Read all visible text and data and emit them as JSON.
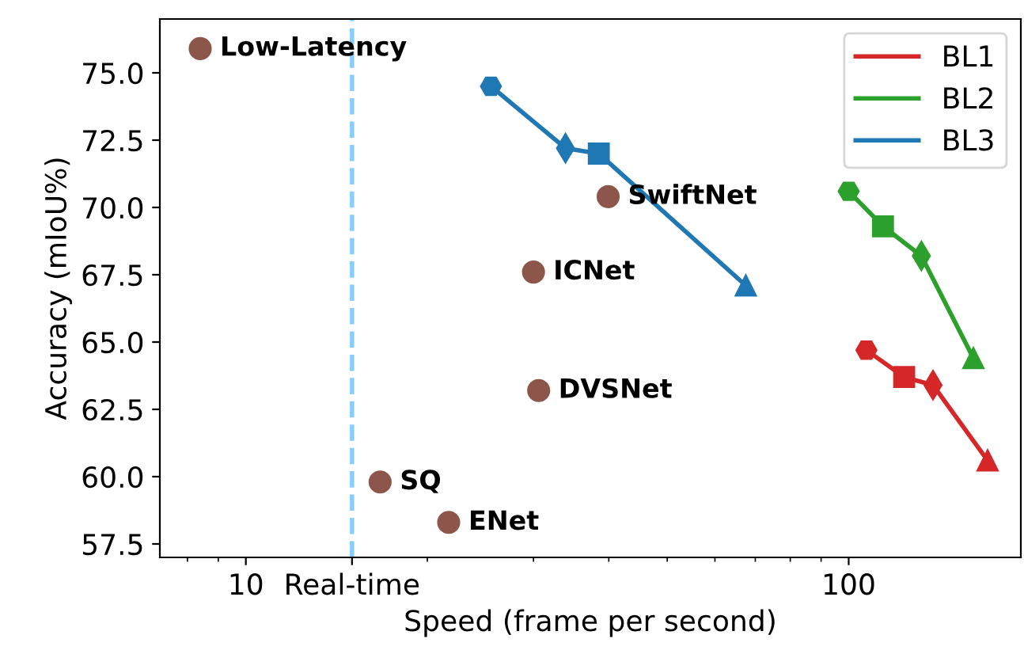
{
  "chart_data": {
    "type": "line",
    "xlabel": "Speed (frame per second)",
    "ylabel": "Accuracy (mIoU%)",
    "log": "x",
    "xlim": [
      7.2,
      193
    ],
    "ylim": [
      57.0,
      77.0
    ],
    "xticks": [
      10,
      {
        "value": 15,
        "label": "Real-time"
      },
      100
    ],
    "yticks": [
      {
        "value": 57.5,
        "label": "57.5"
      },
      {
        "value": 60,
        "label": "60.0"
      },
      {
        "value": 62.5,
        "label": "62.5"
      },
      {
        "value": 65,
        "label": "65.0"
      },
      {
        "value": 67.5,
        "label": "67.5"
      },
      {
        "value": 70,
        "label": "70.0"
      },
      {
        "value": 72.5,
        "label": "72.5"
      },
      {
        "value": 75,
        "label": "75.0"
      }
    ],
    "grid": false,
    "legend": "top right",
    "line_style": "solid",
    "series": [
      {
        "name": "BL1",
        "color": "#d62728",
        "marker": [
          "hexagon",
          "square",
          "diamond",
          "triangle"
        ],
        "x": [
          107,
          123.6,
          138,
          170
        ],
        "values": [
          64.7,
          63.7,
          63.4,
          60.6
        ]
      },
      {
        "name": "BL2",
        "color": "#2ca02c",
        "marker": [
          "hexagon",
          "square",
          "diamond",
          "triangle"
        ],
        "x": [
          100,
          114,
          132,
          161
        ],
        "values": [
          70.6,
          69.3,
          68.2,
          64.4
        ]
      },
      {
        "name": "BL3",
        "color": "#1f77b4",
        "marker": [
          "hexagon",
          "diamond",
          "square",
          "triangle"
        ],
        "x": [
          25.5,
          33.9,
          38.5,
          67.5
        ],
        "values": [
          74.5,
          72.2,
          72.0,
          67.1
        ]
      },
      {
        "type": "scatter",
        "color": "#8c564b",
        "marker": "circle",
        "x": [
          8.4,
          39.9,
          30.0,
          30.6,
          16.7,
          21.7
        ],
        "values": [
          75.9,
          70.4,
          67.6,
          63.2,
          59.8,
          58.3
        ]
      }
    ],
    "ref_lines": [
      {
        "axis": "x",
        "value": 15,
        "color": "#87cefa",
        "line_style": "dashed"
      }
    ],
    "annotations": [
      {
        "text": "Low-Latency",
        "x": 8.4,
        "y": 75.9
      },
      {
        "text": "SwiftNet",
        "x": 39.9,
        "y": 70.4
      },
      {
        "text": "ICNet",
        "x": 30.0,
        "y": 67.6
      },
      {
        "text": "DVSNet",
        "x": 30.6,
        "y": 63.2
      },
      {
        "text": "SQ",
        "x": 16.7,
        "y": 59.8
      },
      {
        "text": "ENet",
        "x": 21.7,
        "y": 58.3
      }
    ]
  }
}
